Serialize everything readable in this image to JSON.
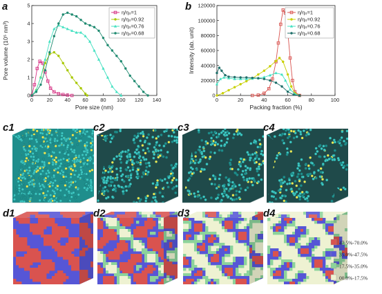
{
  "figure": {
    "panel_a_label": "a",
    "panel_b_label": "b",
    "row_c_labels": [
      "c1",
      "c2",
      "c3",
      "c4"
    ],
    "row_d_labels": [
      "d1",
      "d2",
      "d3",
      "d4"
    ],
    "color_legend": [
      {
        "label": "47.5%-70.0%",
        "color": "#d9534f"
      },
      {
        "label": "35.0%-47.5%",
        "color": "#5656d6"
      },
      {
        "label": "17.5%-35.0%",
        "color": "#8cd39b"
      },
      {
        "label": "00.0%-17.5%",
        "color": "#eef2d2"
      }
    ],
    "cube_colors": {
      "c_particle": "#3ec9c4",
      "c_particle_dark": "#1f8e8c",
      "c_highlight": "#f3e84f",
      "c_void": "#1f4a4a"
    }
  },
  "chart_data": [
    {
      "type": "scatter",
      "panel": "a",
      "xlabel": "Pore size (nm)",
      "ylabel": "Pore volume (10⁵ nm³)",
      "xlim": [
        0,
        140
      ],
      "ylim": [
        0,
        5
      ],
      "xticks": [
        "0",
        "20",
        "40",
        "60",
        "80",
        "100",
        "120",
        "140"
      ],
      "yticks": [
        "0",
        "1",
        "2",
        "3",
        "4",
        "5"
      ],
      "legend_position": "top-right",
      "series": [
        {
          "name": "η/η₀=1",
          "color": "#d63384",
          "marker": "square",
          "x": [
            0,
            3,
            6,
            9,
            12,
            15,
            18,
            21,
            25,
            30,
            35,
            40,
            45
          ],
          "y": [
            0,
            0.6,
            1.5,
            1.9,
            1.8,
            1.3,
            0.8,
            0.4,
            0.2,
            0.1,
            0.05,
            0.02,
            0
          ]
        },
        {
          "name": "η/η₀=0.92",
          "color": "#a8c800",
          "marker": "circle",
          "x": [
            0,
            5,
            10,
            15,
            20,
            25,
            30,
            35,
            40,
            45,
            50,
            55,
            60,
            62
          ],
          "y": [
            0,
            0.3,
            1.0,
            1.8,
            2.3,
            2.4,
            2.2,
            1.8,
            1.4,
            1.0,
            0.7,
            0.4,
            0.1,
            0
          ]
        },
        {
          "name": "η/η₀=0.76",
          "color": "#40e0c0",
          "marker": "triangle",
          "x": [
            0,
            5,
            10,
            15,
            20,
            25,
            30,
            35,
            40,
            45,
            50,
            55,
            60,
            65,
            70,
            75,
            80,
            85,
            90,
            95,
            100
          ],
          "y": [
            0,
            0.3,
            1.0,
            2.0,
            3.0,
            3.7,
            3.9,
            3.8,
            3.7,
            3.6,
            3.5,
            3.5,
            3.3,
            3.0,
            2.5,
            2.0,
            1.5,
            1.0,
            0.5,
            0.2,
            0
          ]
        },
        {
          "name": "η/η₀=0.68",
          "color": "#1f8a70",
          "marker": "circle",
          "x": [
            0,
            5,
            10,
            15,
            20,
            25,
            30,
            35,
            40,
            45,
            50,
            55,
            60,
            65,
            70,
            75,
            80,
            85,
            90,
            95,
            100,
            105,
            110,
            115,
            120,
            125,
            130
          ],
          "y": [
            0,
            0.2,
            0.6,
            1.4,
            2.4,
            3.3,
            4.0,
            4.5,
            4.6,
            4.5,
            4.4,
            4.2,
            4.0,
            3.9,
            3.8,
            3.6,
            3.2,
            2.8,
            2.5,
            2.2,
            1.9,
            1.5,
            1.1,
            0.8,
            0.5,
            0.2,
            0
          ]
        }
      ]
    },
    {
      "type": "scatter",
      "panel": "b",
      "xlabel": "Packing fraction (%)",
      "ylabel": "Intensity (ab. unit)",
      "xlim": [
        0,
        100
      ],
      "ylim": [
        0,
        120000
      ],
      "xticks": [
        "0",
        "20",
        "40",
        "60",
        "80",
        "100"
      ],
      "yticks": [
        "0",
        "20000",
        "40000",
        "60000",
        "80000",
        "100000",
        "120000"
      ],
      "legend_position": "top-right",
      "series": [
        {
          "name": "η/η₀=1",
          "color": "#d9534f",
          "marker": "square",
          "x": [
            30,
            35,
            40,
            44,
            47,
            50,
            52,
            54,
            56,
            58,
            60,
            62,
            64,
            66,
            70
          ],
          "y": [
            0,
            500,
            3000,
            9000,
            22000,
            45000,
            70000,
            95000,
            114000,
            110000,
            85000,
            50000,
            20000,
            5000,
            0
          ]
        },
        {
          "name": "η/η₀=0.92",
          "color": "#c8d000",
          "marker": "circle",
          "x": [
            0,
            5,
            10,
            15,
            20,
            25,
            30,
            35,
            40,
            45,
            50,
            53,
            56,
            60,
            63,
            66,
            70
          ],
          "y": [
            0,
            3000,
            7000,
            11000,
            15000,
            19000,
            23000,
            28000,
            33000,
            39000,
            46000,
            50000,
            45000,
            28000,
            12000,
            3000,
            0
          ]
        },
        {
          "name": "η/η₀=0.76",
          "color": "#40e0c0",
          "marker": "triangle",
          "x": [
            0,
            3,
            6,
            10,
            15,
            20,
            25,
            30,
            35,
            40,
            45,
            50,
            55,
            58,
            62,
            66,
            70
          ],
          "y": [
            15000,
            22000,
            24000,
            23000,
            22000,
            22000,
            22000,
            22500,
            23000,
            24500,
            27000,
            30000,
            28000,
            20000,
            8000,
            2000,
            0
          ]
        },
        {
          "name": "η/η₀=0.68",
          "color": "#1f6f6a",
          "marker": "circle",
          "x": [
            0,
            2,
            4,
            7,
            10,
            15,
            20,
            25,
            30,
            35,
            40,
            45,
            50,
            55,
            60,
            65,
            70
          ],
          "y": [
            30000,
            37000,
            33000,
            27000,
            25000,
            24500,
            24000,
            24000,
            23500,
            23000,
            22000,
            20000,
            17000,
            12000,
            5000,
            1000,
            0
          ]
        }
      ]
    }
  ]
}
